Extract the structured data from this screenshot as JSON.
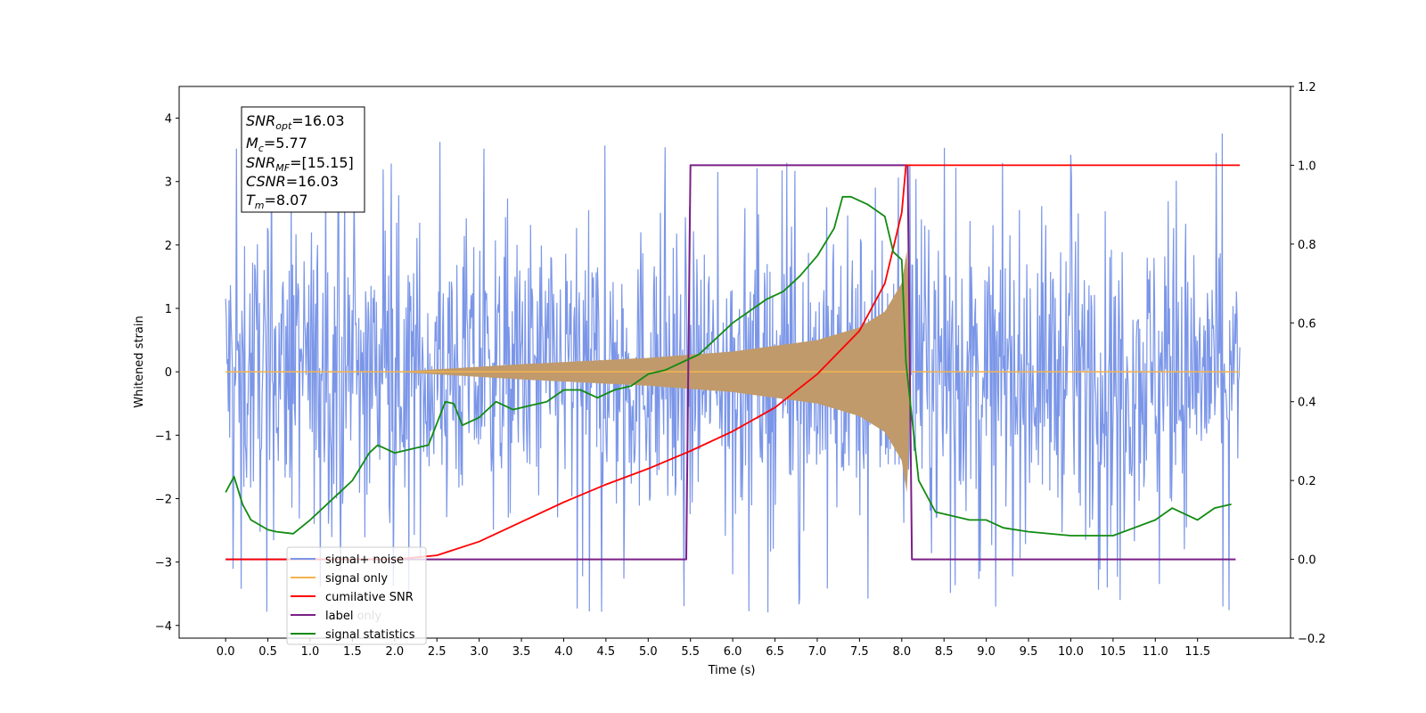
{
  "chart_data": {
    "type": "line",
    "xlabel": "Time (s)",
    "ylabel": "Whitened strain",
    "xlim": [
      -0.55,
      12.6
    ],
    "ylim": [
      -4.2,
      4.5
    ],
    "y2lim": [
      -0.2,
      1.2
    ],
    "x_ticks": [
      0.0,
      0.5,
      1.0,
      1.5,
      2.0,
      2.5,
      3.0,
      3.5,
      4.0,
      4.5,
      5.0,
      5.5,
      6.0,
      6.5,
      7.0,
      7.5,
      8.0,
      8.5,
      9.0,
      9.5,
      10.0,
      10.5,
      11.0,
      11.5
    ],
    "x_tick_labels": [
      "0.0",
      "0.5",
      "1.0",
      "1.5",
      "2.0",
      "2.5",
      "3.0",
      "3.5",
      "4.0",
      "4.5",
      "5.0",
      "5.5",
      "6.0",
      "6.5",
      "7.0",
      "7.5",
      "8.0",
      "8.5",
      "9.0",
      "9.5",
      "10.0",
      "10.5",
      "11.0",
      "11.5"
    ],
    "y_ticks": [
      -4,
      -3,
      -2,
      -1,
      0,
      1,
      2,
      3,
      4
    ],
    "y_tick_labels": [
      "−4",
      "−3",
      "−2",
      "−1",
      "0",
      "1",
      "2",
      "3",
      "4"
    ],
    "y2_ticks": [
      -0.2,
      0.0,
      0.2,
      0.4,
      0.6,
      0.8,
      1.0,
      1.2
    ],
    "y2_tick_labels": [
      "−0.2",
      "0.0",
      "0.2",
      "0.4",
      "0.6",
      "0.8",
      "1.0",
      "1.2"
    ],
    "grid": false,
    "legend_placement": "lower-left",
    "colors": {
      "noise": "#7b96e8",
      "signal": "#f5b34d",
      "signal_fill": "#c09a6b",
      "cumsnr": "#ff0000",
      "label": "#7b1f86",
      "stats": "#118b11"
    },
    "series": [
      {
        "name": "signal+ noise",
        "axis": "left",
        "style": "dense noise band",
        "x_range": [
          0.0,
          12.0
        ],
        "typical_envelope": [
          -2.5,
          2.5
        ],
        "extremes": [
          -3.9,
          4.1
        ]
      },
      {
        "name": "signal only",
        "axis": "left",
        "style": "chirp",
        "start": 2.0,
        "merger": 8.07,
        "amplitude": [
          [
            2.0,
            0.0
          ],
          [
            3.5,
            0.12
          ],
          [
            5.0,
            0.22
          ],
          [
            6.0,
            0.32
          ],
          [
            7.0,
            0.5
          ],
          [
            7.5,
            0.7
          ],
          [
            7.8,
            0.95
          ],
          [
            8.0,
            1.4
          ],
          [
            8.07,
            2.0
          ],
          [
            8.1,
            0.0
          ]
        ]
      },
      {
        "name": "cumilative SNR",
        "axis": "right",
        "x": [
          0.0,
          2.0,
          2.5,
          3.0,
          3.5,
          4.0,
          4.5,
          5.0,
          5.5,
          6.0,
          6.5,
          7.0,
          7.5,
          7.8,
          8.0,
          8.05,
          12.0
        ],
        "values": [
          0.0,
          0.0,
          0.01,
          0.045,
          0.095,
          0.145,
          0.19,
          0.23,
          0.275,
          0.325,
          0.385,
          0.47,
          0.58,
          0.7,
          0.88,
          1.0,
          1.0
        ]
      },
      {
        "name": "label",
        "axis": "right",
        "x": [
          0.0,
          5.45,
          5.5,
          8.07,
          8.12,
          11.95
        ],
        "values": [
          0.0,
          0.0,
          1.0,
          1.0,
          0.0,
          0.0
        ]
      },
      {
        "name": "signal statistics",
        "axis": "right",
        "x": [
          0.0,
          0.1,
          0.2,
          0.3,
          0.5,
          0.6,
          0.8,
          1.0,
          1.2,
          1.5,
          1.7,
          1.8,
          2.0,
          2.2,
          2.4,
          2.6,
          2.7,
          2.8,
          3.0,
          3.2,
          3.4,
          3.6,
          3.8,
          4.0,
          4.2,
          4.4,
          4.6,
          4.8,
          5.0,
          5.2,
          5.4,
          5.6,
          5.8,
          6.0,
          6.2,
          6.4,
          6.6,
          6.8,
          7.0,
          7.2,
          7.3,
          7.4,
          7.6,
          7.8,
          7.9,
          8.0,
          8.05,
          8.2,
          8.4,
          8.6,
          8.8,
          9.0,
          9.2,
          9.5,
          10.0,
          10.5,
          11.0,
          11.2,
          11.5,
          11.7,
          11.9
        ],
        "values": [
          0.17,
          0.21,
          0.14,
          0.1,
          0.075,
          0.07,
          0.065,
          0.1,
          0.14,
          0.2,
          0.27,
          0.29,
          0.27,
          0.28,
          0.29,
          0.4,
          0.395,
          0.34,
          0.36,
          0.4,
          0.38,
          0.39,
          0.4,
          0.43,
          0.43,
          0.41,
          0.43,
          0.44,
          0.47,
          0.48,
          0.5,
          0.52,
          0.56,
          0.6,
          0.63,
          0.66,
          0.68,
          0.72,
          0.77,
          0.84,
          0.92,
          0.92,
          0.9,
          0.87,
          0.78,
          0.76,
          0.5,
          0.2,
          0.12,
          0.11,
          0.1,
          0.1,
          0.08,
          0.07,
          0.06,
          0.06,
          0.1,
          0.13,
          0.1,
          0.13,
          0.14
        ]
      }
    ],
    "annotation": {
      "snr_opt": "=16.03",
      "mc": "=5.77",
      "snr_mf": "=[15.15]",
      "csnr": "=16.03",
      "tm": "=8.07"
    },
    "legend": [
      "signal+ noise",
      "signal only",
      "cumilative SNR",
      "label",
      "signal statistics"
    ],
    "legend_ghost_text": "label only"
  }
}
